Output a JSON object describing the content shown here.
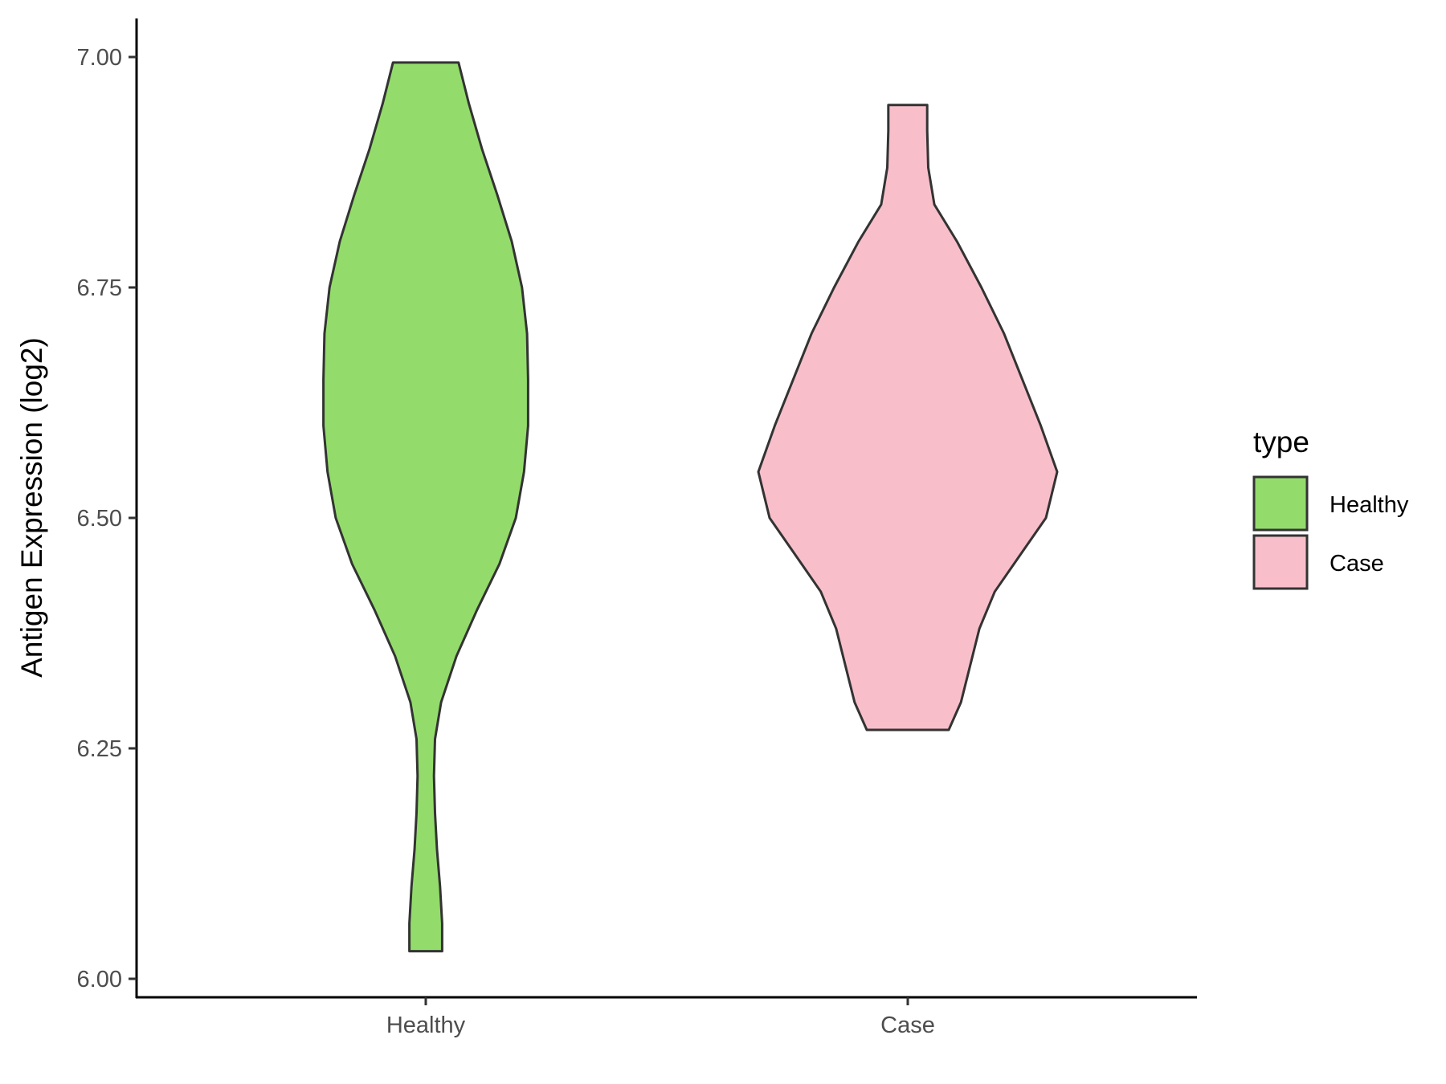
{
  "chart_data": {
    "type": "violin",
    "title": "",
    "xlabel": "",
    "ylabel": "Antigen Expression (log2)",
    "ylim": [
      5.98,
      7.04
    ],
    "yticks": [
      6.0,
      6.25,
      6.5,
      6.75,
      7.0
    ],
    "ytick_labels": [
      "6.00",
      "6.25",
      "6.50",
      "6.75",
      "7.00"
    ],
    "categories": [
      "Healthy",
      "Case"
    ],
    "grid": false,
    "legend": {
      "title": "type",
      "placement": "right",
      "entries": [
        "Healthy",
        "Case"
      ]
    },
    "series": [
      {
        "name": "Healthy",
        "color": "#93dc6b",
        "min": 6.03,
        "max": 6.994,
        "density": [
          [
            6.03,
            0.16
          ],
          [
            6.06,
            0.16
          ],
          [
            6.1,
            0.14
          ],
          [
            6.14,
            0.11
          ],
          [
            6.18,
            0.09
          ],
          [
            6.22,
            0.08
          ],
          [
            6.26,
            0.09
          ],
          [
            6.3,
            0.15
          ],
          [
            6.35,
            0.3
          ],
          [
            6.4,
            0.5
          ],
          [
            6.45,
            0.72
          ],
          [
            6.5,
            0.88
          ],
          [
            6.55,
            0.96
          ],
          [
            6.6,
            1.0
          ],
          [
            6.65,
            1.0
          ],
          [
            6.7,
            0.99
          ],
          [
            6.75,
            0.94
          ],
          [
            6.8,
            0.84
          ],
          [
            6.85,
            0.7
          ],
          [
            6.9,
            0.55
          ],
          [
            6.95,
            0.42
          ],
          [
            6.994,
            0.32
          ]
        ]
      },
      {
        "name": "Case",
        "color": "#f8bfca",
        "min": 6.27,
        "max": 6.948,
        "density": [
          [
            6.27,
            0.4
          ],
          [
            6.3,
            0.52
          ],
          [
            6.34,
            0.61
          ],
          [
            6.38,
            0.7
          ],
          [
            6.42,
            0.85
          ],
          [
            6.46,
            1.1
          ],
          [
            6.5,
            1.35
          ],
          [
            6.55,
            1.46
          ],
          [
            6.6,
            1.3
          ],
          [
            6.65,
            1.12
          ],
          [
            6.7,
            0.94
          ],
          [
            6.75,
            0.72
          ],
          [
            6.8,
            0.48
          ],
          [
            6.84,
            0.26
          ],
          [
            6.88,
            0.2
          ],
          [
            6.92,
            0.19
          ],
          [
            6.948,
            0.19
          ]
        ]
      }
    ]
  }
}
